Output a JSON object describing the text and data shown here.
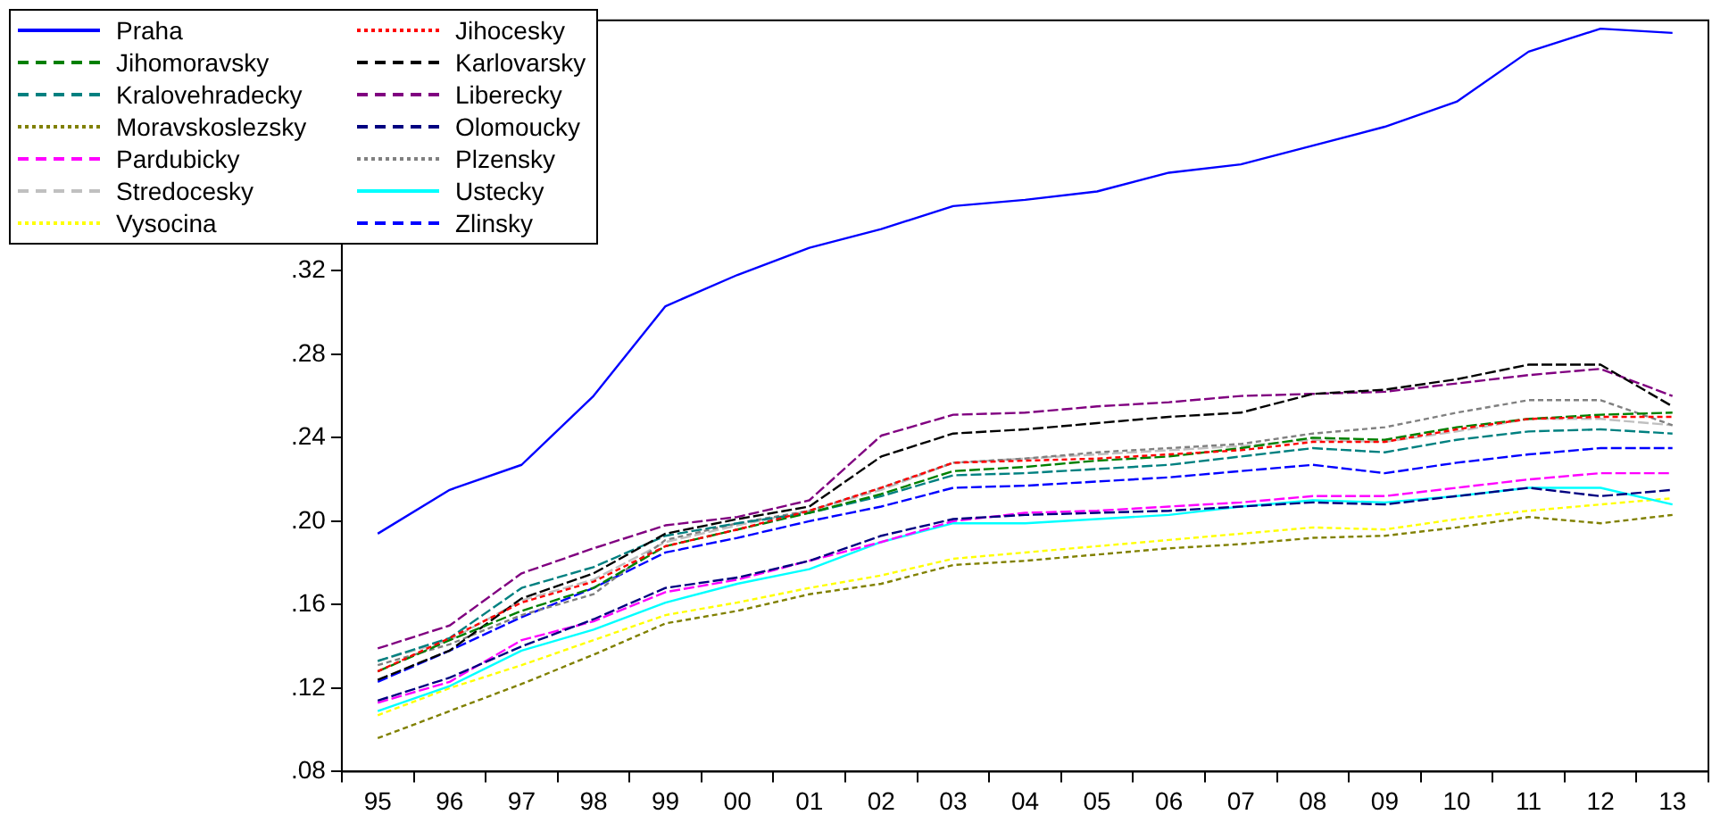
{
  "chart_data": {
    "type": "line",
    "categories": [
      "95",
      "96",
      "97",
      "98",
      "99",
      "00",
      "01",
      "02",
      "03",
      "04",
      "05",
      "06",
      "07",
      "08",
      "09",
      "10",
      "11",
      "12",
      "13"
    ],
    "ylim": [
      0.08,
      0.44
    ],
    "yticks": [
      {
        "value": 0.08,
        "label": ".08"
      },
      {
        "value": 0.12,
        "label": ".12"
      },
      {
        "value": 0.16,
        "label": ".16"
      },
      {
        "value": 0.2,
        "label": ".20"
      },
      {
        "value": 0.24,
        "label": ".24"
      },
      {
        "value": 0.28,
        "label": ".28"
      },
      {
        "value": 0.32,
        "label": ".32"
      }
    ],
    "grid": false,
    "legend": "top left",
    "marker": "none",
    "series": [
      {
        "name": "Praha",
        "color": "#0000ff",
        "line_style": "solid",
        "values": [
          0.194,
          0.215,
          0.227,
          0.26,
          0.303,
          0.318,
          0.331,
          0.34,
          0.351,
          0.354,
          0.358,
          0.367,
          0.371,
          0.38,
          0.389,
          0.401,
          0.425,
          0.436,
          0.434
        ]
      },
      {
        "name": "Jihocesky",
        "color": "#ff0000",
        "line_style": "dotted",
        "values": [
          0.128,
          0.144,
          0.161,
          0.171,
          0.188,
          0.196,
          0.205,
          0.216,
          0.228,
          0.229,
          0.23,
          0.232,
          0.234,
          0.238,
          0.238,
          0.244,
          0.249,
          0.25,
          0.25
        ]
      },
      {
        "name": "Jihomoravsky",
        "color": "#008000",
        "line_style": "dashed",
        "values": [
          0.128,
          0.143,
          0.157,
          0.168,
          0.188,
          0.196,
          0.204,
          0.213,
          0.224,
          0.226,
          0.229,
          0.231,
          0.235,
          0.24,
          0.239,
          0.245,
          0.249,
          0.251,
          0.252
        ]
      },
      {
        "name": "Karlovarsky",
        "color": "#000000",
        "line_style": "dashed",
        "values": [
          0.124,
          0.138,
          0.163,
          0.175,
          0.194,
          0.201,
          0.207,
          0.231,
          0.242,
          0.244,
          0.247,
          0.25,
          0.252,
          0.261,
          0.263,
          0.268,
          0.275,
          0.275,
          0.255
        ]
      },
      {
        "name": "Kralovehradecky",
        "color": "#008080",
        "line_style": "dashed",
        "values": [
          0.133,
          0.144,
          0.168,
          0.178,
          0.193,
          0.199,
          0.204,
          0.212,
          0.222,
          0.223,
          0.225,
          0.227,
          0.231,
          0.235,
          0.233,
          0.239,
          0.243,
          0.244,
          0.242
        ]
      },
      {
        "name": "Liberecky",
        "color": "#800080",
        "line_style": "dashed",
        "values": [
          0.139,
          0.15,
          0.175,
          0.187,
          0.198,
          0.202,
          0.21,
          0.241,
          0.251,
          0.252,
          0.255,
          0.257,
          0.26,
          0.261,
          0.262,
          0.266,
          0.27,
          0.273,
          0.26
        ]
      },
      {
        "name": "Moravskoslezsky",
        "color": "#808000",
        "line_style": "dotted",
        "values": [
          0.096,
          0.109,
          0.122,
          0.136,
          0.151,
          0.157,
          0.165,
          0.17,
          0.179,
          0.181,
          0.184,
          0.187,
          0.189,
          0.192,
          0.193,
          0.197,
          0.202,
          0.199,
          0.203
        ]
      },
      {
        "name": "Olomoucky",
        "color": "#000080",
        "line_style": "dashed",
        "values": [
          0.114,
          0.125,
          0.14,
          0.153,
          0.168,
          0.173,
          0.181,
          0.193,
          0.201,
          0.203,
          0.204,
          0.205,
          0.207,
          0.209,
          0.208,
          0.212,
          0.216,
          0.212,
          0.215
        ]
      },
      {
        "name": "Pardubicky",
        "color": "#ff00ff",
        "line_style": "dashed",
        "values": [
          0.113,
          0.123,
          0.143,
          0.152,
          0.166,
          0.172,
          0.181,
          0.19,
          0.2,
          0.204,
          0.205,
          0.207,
          0.209,
          0.212,
          0.212,
          0.216,
          0.22,
          0.223,
          0.223
        ]
      },
      {
        "name": "Plzensky",
        "color": "#808080",
        "line_style": "dotted",
        "values": [
          0.131,
          0.141,
          0.155,
          0.165,
          0.191,
          0.199,
          0.205,
          0.216,
          0.228,
          0.23,
          0.233,
          0.235,
          0.237,
          0.242,
          0.245,
          0.252,
          0.258,
          0.258,
          0.246
        ]
      },
      {
        "name": "Stredocesky",
        "color": "#c0c0c0",
        "line_style": "dashed",
        "values": [
          0.133,
          0.143,
          0.162,
          0.172,
          0.19,
          0.198,
          0.205,
          0.215,
          0.228,
          0.23,
          0.232,
          0.234,
          0.236,
          0.239,
          0.238,
          0.243,
          0.249,
          0.249,
          0.246
        ]
      },
      {
        "name": "Ustecky",
        "color": "#00ffff",
        "line_style": "solid",
        "values": [
          0.109,
          0.121,
          0.138,
          0.148,
          0.161,
          0.17,
          0.177,
          0.19,
          0.199,
          0.199,
          0.201,
          0.203,
          0.207,
          0.21,
          0.209,
          0.212,
          0.216,
          0.216,
          0.208
        ]
      },
      {
        "name": "Vysocina",
        "color": "#ffff00",
        "line_style": "dotted",
        "values": [
          0.107,
          0.12,
          0.131,
          0.143,
          0.155,
          0.161,
          0.168,
          0.174,
          0.182,
          0.185,
          0.188,
          0.191,
          0.194,
          0.197,
          0.196,
          0.201,
          0.205,
          0.208,
          0.211
        ]
      },
      {
        "name": "Zlinsky",
        "color": "#0000ff",
        "line_style": "dashed",
        "values": [
          0.123,
          0.138,
          0.154,
          0.168,
          0.185,
          0.192,
          0.2,
          0.207,
          0.216,
          0.217,
          0.219,
          0.221,
          0.224,
          0.227,
          0.223,
          0.228,
          0.232,
          0.235,
          0.235
        ]
      }
    ]
  }
}
